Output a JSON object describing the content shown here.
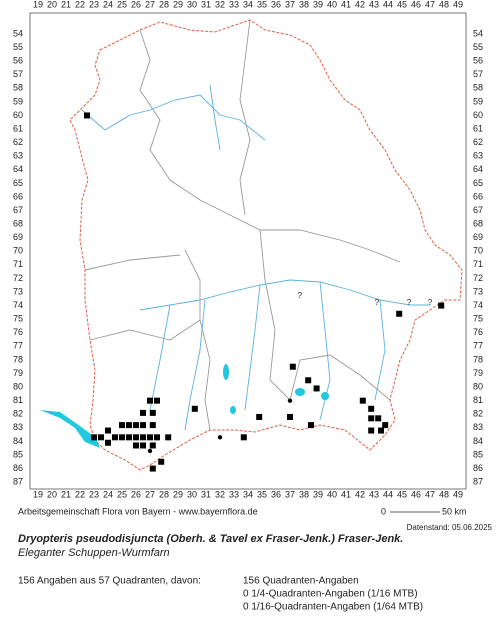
{
  "map": {
    "x_labels": [
      19,
      20,
      21,
      22,
      23,
      24,
      25,
      26,
      27,
      28,
      29,
      30,
      31,
      32,
      33,
      34,
      35,
      36,
      37,
      38,
      39,
      40,
      41,
      42,
      43,
      44,
      45,
      46,
      47,
      48,
      49
    ],
    "y_labels": [
      54,
      55,
      56,
      57,
      58,
      59,
      60,
      61,
      62,
      63,
      64,
      65,
      66,
      67,
      68,
      69,
      70,
      71,
      72,
      73,
      74,
      75,
      76,
      77,
      78,
      79,
      80,
      81,
      82,
      83,
      84,
      85,
      86,
      87
    ],
    "squares": [
      [
        22.5,
        60
      ],
      [
        47.8,
        74
      ],
      [
        44.8,
        74.6
      ],
      [
        37.2,
        78.5
      ],
      [
        38.3,
        79.5
      ],
      [
        38.9,
        80.1
      ],
      [
        30.2,
        81.6
      ],
      [
        34.8,
        82.2
      ],
      [
        37,
        82.2
      ],
      [
        38.5,
        82.8
      ],
      [
        42.2,
        81
      ],
      [
        42.8,
        81.6
      ],
      [
        42.8,
        82.3
      ],
      [
        43.3,
        82.3
      ],
      [
        43.8,
        82.8
      ],
      [
        42.8,
        83.2
      ],
      [
        43.5,
        83.2
      ],
      [
        33.7,
        83.7
      ],
      [
        27,
        81
      ],
      [
        27.5,
        81
      ],
      [
        26.5,
        81.9
      ],
      [
        27.2,
        81.9
      ],
      [
        25,
        82.8
      ],
      [
        25.5,
        82.8
      ],
      [
        26,
        82.8
      ],
      [
        26.5,
        82.8
      ],
      [
        27.2,
        82.8
      ],
      [
        24,
        83.2
      ],
      [
        24.5,
        83.7
      ],
      [
        25,
        83.7
      ],
      [
        25.5,
        83.7
      ],
      [
        26,
        83.7
      ],
      [
        26.5,
        83.7
      ],
      [
        27,
        83.7
      ],
      [
        27.5,
        83.7
      ],
      [
        23.5,
        83.7
      ],
      [
        23,
        83.7
      ],
      [
        24,
        84.1
      ],
      [
        26,
        84.3
      ],
      [
        26.5,
        84.3
      ],
      [
        27.2,
        84.3
      ],
      [
        28.3,
        83.7
      ],
      [
        27.8,
        85.5
      ],
      [
        27.2,
        86
      ]
    ],
    "circles": [
      [
        37,
        81
      ],
      [
        32,
        83.7
      ],
      [
        27,
        84.7
      ]
    ],
    "question_marks": [
      {
        "x": 37.7,
        "y": 73.3,
        "label": "?"
      },
      {
        "x": 43.2,
        "y": 73.8,
        "label": "?"
      },
      {
        "x": 45.5,
        "y": 73.8,
        "label": "?"
      },
      {
        "x": 47,
        "y": 73.8,
        "label": "?"
      }
    ]
  },
  "footer": {
    "credit": "Arbeitsgemeinschaft Flora von Bayern - www.bayernflora.de",
    "scale_start": "0",
    "scale_end": "50 km",
    "date": "Datenstand: 05.06.2025"
  },
  "species": {
    "name": "Dryopteris pseudodisjuncta (Oberh. & Tavel ex Fraser-Jenk.) Fraser-Jenk.",
    "common_name": "Eleganter Schuppen-Wurmfarn"
  },
  "summary": {
    "total": "156 Angaben aus 57 Quadranten, davon:",
    "lines": [
      "156 Quadranten-Angaben",
      "0 1/4-Quadranten-Angaben (1/16 MTB)",
      "0 1/16-Quadranten-Angaben (1/64 MTB)"
    ]
  }
}
